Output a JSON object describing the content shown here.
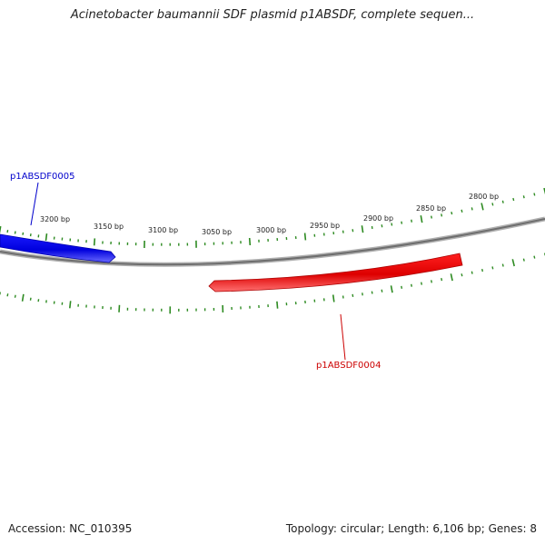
{
  "title": "Acinetobacter baumannii SDF plasmid p1ABSDF, complete sequen...",
  "accession": "Accession: NC_010395",
  "summary": "Topology: circular; Length: 6,106 bp; Genes: 8",
  "scale": {
    "labels": [
      "3200 bp",
      "3150 bp",
      "3100 bp",
      "3050 bp",
      "3000 bp",
      "2950 bp",
      "2900 bp",
      "2850 bp",
      "2800 bp"
    ]
  },
  "genes": [
    {
      "id": "p1ABSDF0005",
      "color": "#0000ee",
      "label_color": "#0000cc",
      "strand": "+"
    },
    {
      "id": "p1ABSDF0004",
      "color": "#ee0000",
      "label_color": "#cc0000",
      "strand": "-"
    }
  ],
  "colors": {
    "backbone": "#808080",
    "ticks": "#2e8b22"
  }
}
